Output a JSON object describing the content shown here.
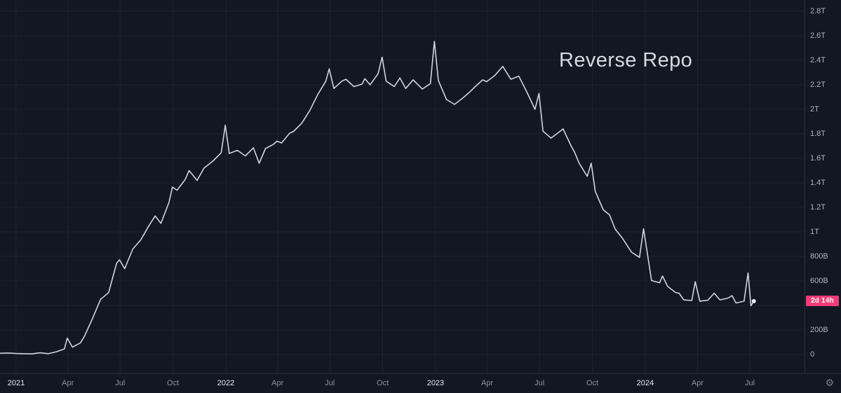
{
  "icons": {
    "settings": "⚙"
  },
  "chart_data": {
    "type": "line",
    "title": "Reverse Repo",
    "background": "#131722",
    "line_color": "#d1d4dc",
    "grid": true,
    "ylim_billions": [
      0,
      2870
    ],
    "y_grid_step_b": 200,
    "countdown_label": "2d 14h",
    "countdown_value_b": 435,
    "countdown_bg": "#f23c78",
    "y_ticks": [
      {
        "label": "2.8T",
        "value": 2800
      },
      {
        "label": "2.6T",
        "value": 2600
      },
      {
        "label": "2.4T",
        "value": 2400
      },
      {
        "label": "2.2T",
        "value": 2200
      },
      {
        "label": "2T",
        "value": 2000
      },
      {
        "label": "1.8T",
        "value": 1800
      },
      {
        "label": "1.6T",
        "value": 1600
      },
      {
        "label": "1.4T",
        "value": 1400
      },
      {
        "label": "1.2T",
        "value": 1200
      },
      {
        "label": "1T",
        "value": 1000
      },
      {
        "label": "800B",
        "value": 800
      },
      {
        "label": "600B",
        "value": 600
      },
      {
        "label": "200B",
        "value": 200
      },
      {
        "label": "0",
        "value": 0
      }
    ],
    "x_ticks": [
      {
        "label": "2021",
        "date": "2021-01-01",
        "major": true
      },
      {
        "label": "Apr",
        "date": "2021-04-01",
        "major": false
      },
      {
        "label": "Jul",
        "date": "2021-07-01",
        "major": false
      },
      {
        "label": "Oct",
        "date": "2021-10-01",
        "major": false
      },
      {
        "label": "2022",
        "date": "2022-01-01",
        "major": true
      },
      {
        "label": "Apr",
        "date": "2022-04-01",
        "major": false
      },
      {
        "label": "Jul",
        "date": "2022-07-01",
        "major": false
      },
      {
        "label": "Oct",
        "date": "2022-10-01",
        "major": false
      },
      {
        "label": "2023",
        "date": "2023-01-01",
        "major": true
      },
      {
        "label": "Apr",
        "date": "2023-04-01",
        "major": false
      },
      {
        "label": "Jul",
        "date": "2023-07-01",
        "major": false
      },
      {
        "label": "Oct",
        "date": "2023-10-01",
        "major": false
      },
      {
        "label": "2024",
        "date": "2024-01-01",
        "major": true
      },
      {
        "label": "Apr",
        "date": "2024-04-01",
        "major": false
      },
      {
        "label": "Jul",
        "date": "2024-07-01",
        "major": false
      }
    ],
    "series": [
      {
        "name": "Reverse Repo",
        "color": "#d1d4dc",
        "points": [
          [
            "2020-12-04",
            10
          ],
          [
            "2020-12-18",
            12
          ],
          [
            "2021-01-01",
            8
          ],
          [
            "2021-01-15",
            6
          ],
          [
            "2021-01-29",
            5
          ],
          [
            "2021-02-12",
            14
          ],
          [
            "2021-02-26",
            6
          ],
          [
            "2021-03-12",
            22
          ],
          [
            "2021-03-26",
            45
          ],
          [
            "2021-03-31",
            134
          ],
          [
            "2021-04-09",
            60
          ],
          [
            "2021-04-23",
            95
          ],
          [
            "2021-04-30",
            150
          ],
          [
            "2021-05-14",
            294
          ],
          [
            "2021-05-28",
            450
          ],
          [
            "2021-06-11",
            505
          ],
          [
            "2021-06-25",
            745
          ],
          [
            "2021-06-30",
            772
          ],
          [
            "2021-07-09",
            700
          ],
          [
            "2021-07-23",
            860
          ],
          [
            "2021-08-06",
            935
          ],
          [
            "2021-08-20",
            1050
          ],
          [
            "2021-08-31",
            1130
          ],
          [
            "2021-09-10",
            1070
          ],
          [
            "2021-09-24",
            1240
          ],
          [
            "2021-09-30",
            1365
          ],
          [
            "2021-10-08",
            1340
          ],
          [
            "2021-10-22",
            1425
          ],
          [
            "2021-10-29",
            1500
          ],
          [
            "2021-11-12",
            1420
          ],
          [
            "2021-11-24",
            1520
          ],
          [
            "2021-12-10",
            1580
          ],
          [
            "2021-12-24",
            1645
          ],
          [
            "2021-12-31",
            1870
          ],
          [
            "2022-01-07",
            1640
          ],
          [
            "2022-01-21",
            1665
          ],
          [
            "2022-02-04",
            1620
          ],
          [
            "2022-02-18",
            1685
          ],
          [
            "2022-02-28",
            1560
          ],
          [
            "2022-03-11",
            1680
          ],
          [
            "2022-03-25",
            1715
          ],
          [
            "2022-03-31",
            1740
          ],
          [
            "2022-04-08",
            1725
          ],
          [
            "2022-04-22",
            1805
          ],
          [
            "2022-04-29",
            1820
          ],
          [
            "2022-05-13",
            1885
          ],
          [
            "2022-05-27",
            1990
          ],
          [
            "2022-06-10",
            2120
          ],
          [
            "2022-06-24",
            2230
          ],
          [
            "2022-06-30",
            2330
          ],
          [
            "2022-07-08",
            2170
          ],
          [
            "2022-07-22",
            2230
          ],
          [
            "2022-07-29",
            2245
          ],
          [
            "2022-08-12",
            2185
          ],
          [
            "2022-08-26",
            2205
          ],
          [
            "2022-08-31",
            2250
          ],
          [
            "2022-09-09",
            2200
          ],
          [
            "2022-09-23",
            2290
          ],
          [
            "2022-09-30",
            2425
          ],
          [
            "2022-10-07",
            2230
          ],
          [
            "2022-10-21",
            2185
          ],
          [
            "2022-10-31",
            2255
          ],
          [
            "2022-11-10",
            2170
          ],
          [
            "2022-11-23",
            2240
          ],
          [
            "2022-12-09",
            2165
          ],
          [
            "2022-12-23",
            2210
          ],
          [
            "2022-12-30",
            2553
          ],
          [
            "2023-01-06",
            2235
          ],
          [
            "2023-01-20",
            2080
          ],
          [
            "2023-02-03",
            2040
          ],
          [
            "2023-02-17",
            2090
          ],
          [
            "2023-02-28",
            2135
          ],
          [
            "2023-03-10",
            2180
          ],
          [
            "2023-03-24",
            2240
          ],
          [
            "2023-03-31",
            2225
          ],
          [
            "2023-04-14",
            2275
          ],
          [
            "2023-04-28",
            2350
          ],
          [
            "2023-05-12",
            2245
          ],
          [
            "2023-05-26",
            2270
          ],
          [
            "2023-06-09",
            2140
          ],
          [
            "2023-06-23",
            2000
          ],
          [
            "2023-06-30",
            2130
          ],
          [
            "2023-07-07",
            1822
          ],
          [
            "2023-07-21",
            1765
          ],
          [
            "2023-07-31",
            1800
          ],
          [
            "2023-08-11",
            1840
          ],
          [
            "2023-08-25",
            1700
          ],
          [
            "2023-08-31",
            1650
          ],
          [
            "2023-09-08",
            1560
          ],
          [
            "2023-09-22",
            1453
          ],
          [
            "2023-09-29",
            1560
          ],
          [
            "2023-10-06",
            1330
          ],
          [
            "2023-10-20",
            1180
          ],
          [
            "2023-10-31",
            1138
          ],
          [
            "2023-11-10",
            1020
          ],
          [
            "2023-11-22",
            950
          ],
          [
            "2023-12-08",
            835
          ],
          [
            "2023-12-22",
            792
          ],
          [
            "2023-12-29",
            1025
          ],
          [
            "2024-01-12",
            603
          ],
          [
            "2024-01-26",
            585
          ],
          [
            "2024-01-31",
            640
          ],
          [
            "2024-02-09",
            555
          ],
          [
            "2024-02-23",
            505
          ],
          [
            "2024-02-29",
            500
          ],
          [
            "2024-03-08",
            445
          ],
          [
            "2024-03-22",
            440
          ],
          [
            "2024-03-28",
            594
          ],
          [
            "2024-04-05",
            435
          ],
          [
            "2024-04-19",
            442
          ],
          [
            "2024-04-30",
            500
          ],
          [
            "2024-05-10",
            445
          ],
          [
            "2024-05-24",
            460
          ],
          [
            "2024-05-31",
            480
          ],
          [
            "2024-06-07",
            420
          ],
          [
            "2024-06-21",
            435
          ],
          [
            "2024-06-28",
            665
          ],
          [
            "2024-07-03",
            398
          ],
          [
            "2024-07-08",
            435
          ]
        ]
      }
    ]
  }
}
